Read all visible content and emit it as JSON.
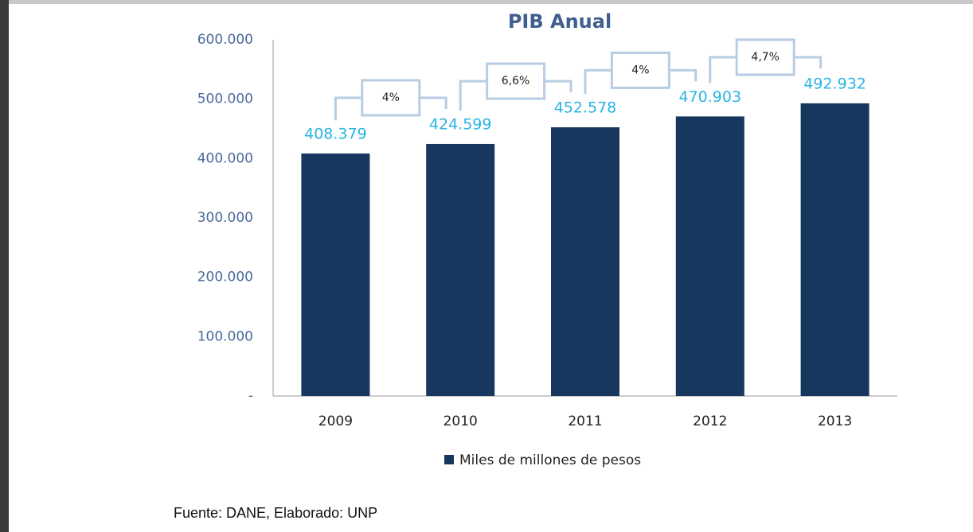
{
  "chart_data": {
    "type": "bar",
    "title": "PIB Anual",
    "categories": [
      "2009",
      "2010",
      "2011",
      "2012",
      "2013"
    ],
    "series": [
      {
        "name": "Miles de millones de pesos",
        "color": "#17375e",
        "values": [
          408379,
          424599,
          452578,
          470903,
          492932
        ],
        "value_labels": [
          "408.379",
          "424.599",
          "452.578",
          "470.903",
          "492.932"
        ]
      }
    ],
    "annotations": [
      "4%",
      "6,6%",
      "4%",
      "4,7%"
    ],
    "ylim": [
      0,
      600000
    ],
    "yticks": [
      {
        "value": 0,
        "label": "-"
      },
      {
        "value": 100000,
        "label": "100.000"
      },
      {
        "value": 200000,
        "label": "200.000"
      },
      {
        "value": 300000,
        "label": "300.000"
      },
      {
        "value": 400000,
        "label": "400.000"
      },
      {
        "value": 500000,
        "label": "500.000"
      },
      {
        "value": 600000,
        "label": "600.000"
      }
    ],
    "grid": false,
    "source": "Fuente: DANE, Elaborado: UNP"
  }
}
